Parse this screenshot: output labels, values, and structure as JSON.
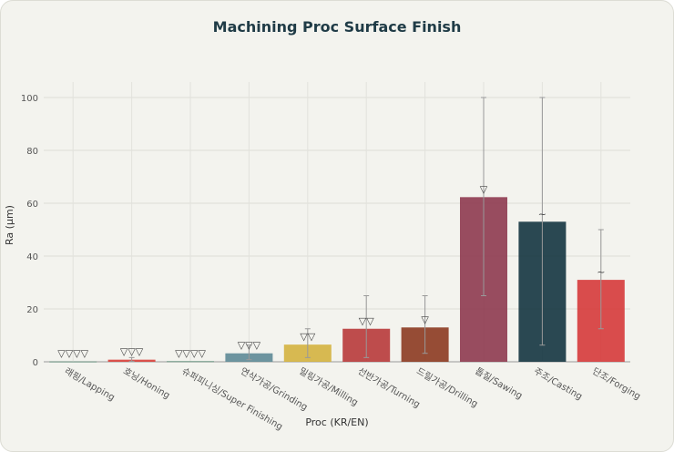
{
  "chart_data": {
    "type": "bar",
    "title": "Machining Proc Surface Finish",
    "xlabel": "Proc (KR/EN)",
    "ylabel": "Ra (μm)",
    "ylim": [
      0,
      105
    ],
    "yticks": [
      0,
      20,
      40,
      60,
      80,
      100
    ],
    "grid": true,
    "categories": [
      "래핑/Lapping",
      "호닝/Honing",
      "슈퍼피니싱/Super Finishing",
      "연삭가공/Grinding",
      "밀링가공/Milling",
      "선반가공/Turning",
      "드릴가공/Drilling",
      "톱질/Sawing",
      "주조/Casting",
      "단조/Forging"
    ],
    "values": [
      0.1,
      0.8,
      0.2,
      3.2,
      6.5,
      12.5,
      13.0,
      62.3,
      53.0,
      31.0
    ],
    "error_low": [
      0,
      0.2,
      0,
      0.8,
      1.6,
      1.6,
      3.2,
      25,
      6.3,
      12.5
    ],
    "error_high": [
      0,
      1.6,
      0,
      6.3,
      12.5,
      25,
      25,
      100,
      100,
      50
    ],
    "symbols": [
      "▽▽▽▽",
      "▽▽▽",
      "▽▽▽▽",
      "▽▽▽",
      "▽▽",
      "▽▽",
      "▽",
      "▽",
      "~",
      "~"
    ],
    "colors": [
      "#3f7a62",
      "#d9403a",
      "#3f7a62",
      "#5e8a96",
      "#d4b33f",
      "#b83a3a",
      "#8c3a20",
      "#8e3a4f",
      "#143540",
      "#d63a3a"
    ]
  }
}
